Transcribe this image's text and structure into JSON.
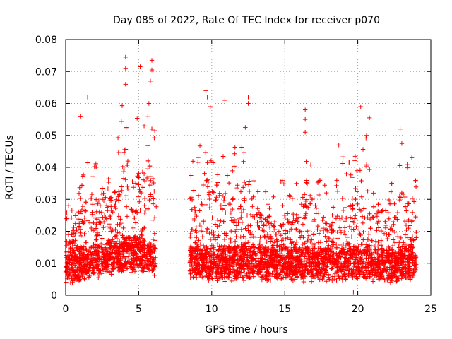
{
  "chart_data": {
    "type": "scatter",
    "title": "Day 085 of 2022, Rate Of TEC Index for receiver p070",
    "xlabel": "GPS time / hours",
    "ylabel": "ROTI / TECUs",
    "xlim": [
      0,
      25
    ],
    "ylim": [
      0,
      0.08
    ],
    "x_ticks": [
      "0",
      "5",
      "10",
      "15",
      "20",
      "25"
    ],
    "y_ticks": [
      "0",
      "0.01",
      "0.02",
      "0.03",
      "0.04",
      "0.05",
      "0.06",
      "0.07",
      "0.08"
    ],
    "grid": true,
    "legend": "none",
    "marker": "plus",
    "color": "#ff0000",
    "data_gap_hours": [
      6.2,
      8.5
    ],
    "profile": {
      "x": [
        0,
        0.5,
        1.0,
        1.5,
        2.0,
        2.5,
        3.0,
        3.5,
        4.0,
        4.5,
        5.0,
        5.5,
        6.0,
        6.2,
        8.5,
        9.0,
        9.5,
        10.0,
        10.5,
        11.0,
        11.5,
        12.0,
        12.5,
        13.0,
        13.5,
        14.0,
        14.5,
        15.0,
        15.5,
        16.0,
        16.5,
        17.0,
        17.5,
        18.0,
        18.5,
        19.0,
        19.5,
        20.0,
        20.5,
        21.0,
        21.5,
        22.0,
        22.5,
        23.0,
        23.5,
        24.0
      ],
      "baseline": [
        0.009,
        0.009,
        0.01,
        0.01,
        0.011,
        0.011,
        0.012,
        0.012,
        0.013,
        0.013,
        0.013,
        0.012,
        0.012,
        0.011,
        0.011,
        0.011,
        0.01,
        0.01,
        0.01,
        0.01,
        0.01,
        0.01,
        0.011,
        0.01,
        0.01,
        0.01,
        0.01,
        0.01,
        0.01,
        0.01,
        0.01,
        0.01,
        0.01,
        0.01,
        0.01,
        0.01,
        0.01,
        0.01,
        0.01,
        0.01,
        0.009,
        0.009,
        0.009,
        0.01,
        0.01,
        0.01
      ],
      "upper": [
        0.028,
        0.03,
        0.04,
        0.048,
        0.045,
        0.05,
        0.045,
        0.052,
        0.074,
        0.06,
        0.071,
        0.06,
        0.073,
        0.05,
        0.047,
        0.049,
        0.063,
        0.05,
        0.061,
        0.045,
        0.05,
        0.052,
        0.062,
        0.045,
        0.042,
        0.04,
        0.038,
        0.04,
        0.038,
        0.045,
        0.058,
        0.045,
        0.04,
        0.038,
        0.04,
        0.048,
        0.045,
        0.059,
        0.055,
        0.047,
        0.04,
        0.044,
        0.05,
        0.052,
        0.045,
        0.04
      ]
    },
    "notable_points": [
      {
        "x": 1.5,
        "y": 0.062
      },
      {
        "x": 1.0,
        "y": 0.056
      },
      {
        "x": 4.1,
        "y": 0.0745
      },
      {
        "x": 4.1,
        "y": 0.071
      },
      {
        "x": 4.1,
        "y": 0.066
      },
      {
        "x": 5.1,
        "y": 0.0715
      },
      {
        "x": 5.9,
        "y": 0.0735
      },
      {
        "x": 5.9,
        "y": 0.0705
      },
      {
        "x": 5.8,
        "y": 0.067
      },
      {
        "x": 5.7,
        "y": 0.06
      },
      {
        "x": 9.6,
        "y": 0.064
      },
      {
        "x": 9.7,
        "y": 0.062
      },
      {
        "x": 9.9,
        "y": 0.059
      },
      {
        "x": 10.9,
        "y": 0.061
      },
      {
        "x": 12.5,
        "y": 0.062
      },
      {
        "x": 12.5,
        "y": 0.06
      },
      {
        "x": 12.3,
        "y": 0.0525
      },
      {
        "x": 16.4,
        "y": 0.058
      },
      {
        "x": 16.4,
        "y": 0.055
      },
      {
        "x": 16.4,
        "y": 0.051
      },
      {
        "x": 18.7,
        "y": 0.047
      },
      {
        "x": 20.2,
        "y": 0.059
      },
      {
        "x": 20.8,
        "y": 0.0555
      },
      {
        "x": 20.6,
        "y": 0.05
      },
      {
        "x": 19.7,
        "y": 0.001
      },
      {
        "x": 22.9,
        "y": 0.052
      },
      {
        "x": 23.7,
        "y": 0.043
      },
      {
        "x": 0.2,
        "y": 0.028
      },
      {
        "x": 24.0,
        "y": 0.018
      }
    ]
  }
}
